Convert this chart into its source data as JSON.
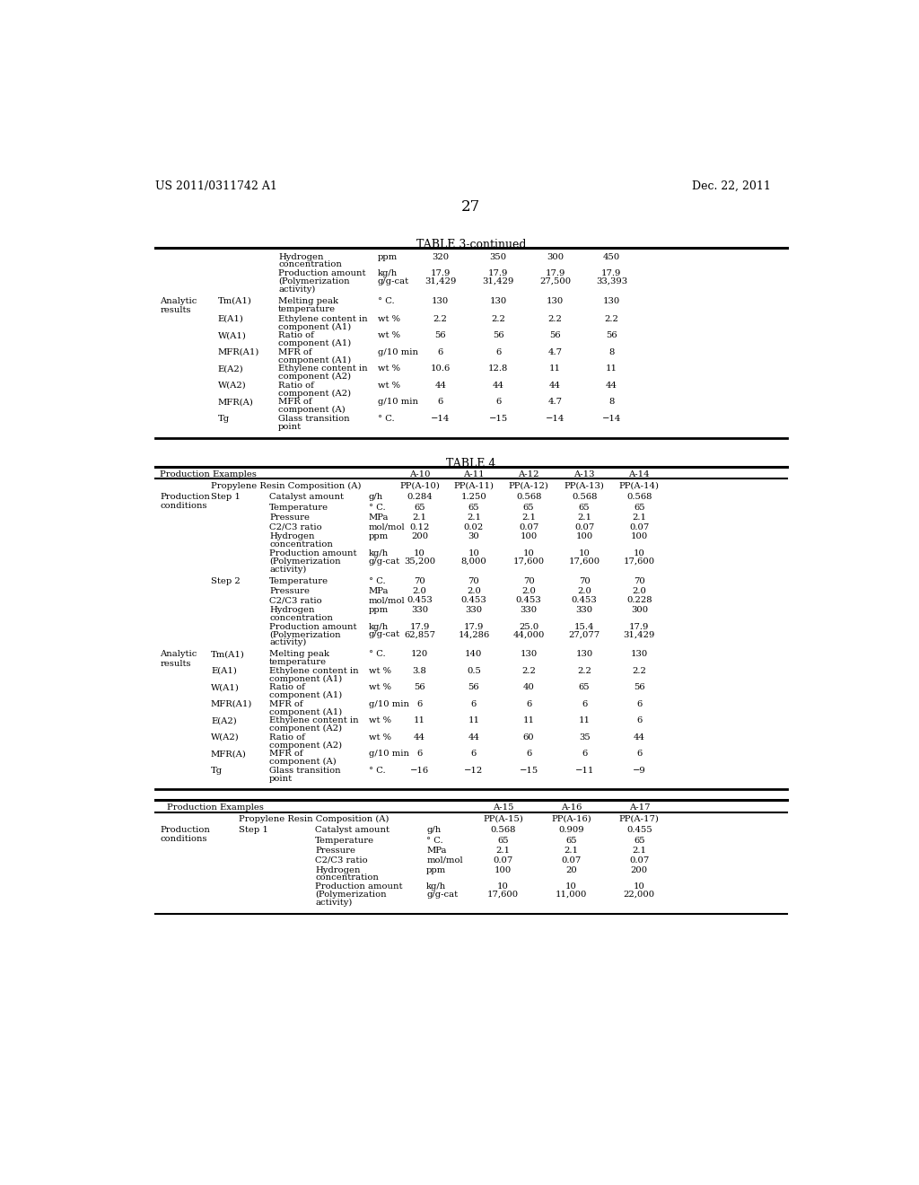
{
  "page_header_left": "US 2011/0311742 A1",
  "page_header_right": "Dec. 22, 2011",
  "page_number": "27",
  "bg_color": "#ffffff",
  "table3_title": "TABLE 3-continued",
  "table3_rows": [
    [
      "",
      "",
      "Hydrogen\nconcentration",
      "ppm",
      "320",
      "350",
      "300",
      "450"
    ],
    [
      "",
      "",
      "Production amount\n(Polymerization\nactivity)",
      "kg/h\ng/g-cat",
      "17.9\n31,429",
      "17.9\n31,429",
      "17.9\n27,500",
      "17.9\n33,393"
    ],
    [
      "Analytic\nresults",
      "Tm(A1)",
      "Melting peak\ntemperature",
      "° C.",
      "130",
      "130",
      "130",
      "130"
    ],
    [
      "",
      "E(A1)",
      "Ethylene content in\ncomponent (A1)",
      "wt %",
      "2.2",
      "2.2",
      "2.2",
      "2.2"
    ],
    [
      "",
      "W(A1)",
      "Ratio of\ncomponent (A1)",
      "wt %",
      "56",
      "56",
      "56",
      "56"
    ],
    [
      "",
      "MFR(A1)",
      "MFR of\ncomponent (A1)",
      "g/10 min",
      "6",
      "6",
      "4.7",
      "8"
    ],
    [
      "",
      "E(A2)",
      "Ethylene content in\ncomponent (A2)",
      "wt %",
      "10.6",
      "12.8",
      "11",
      "11"
    ],
    [
      "",
      "W(A2)",
      "Ratio of\ncomponent (A2)",
      "wt %",
      "44",
      "44",
      "44",
      "44"
    ],
    [
      "",
      "MFR(A)",
      "MFR of\ncomponent (A)",
      "g/10 min",
      "6",
      "6",
      "4.7",
      "8"
    ],
    [
      "",
      "Tg",
      "Glass transition\npoint",
      "° C.",
      "−14",
      "−15",
      "−14",
      "−14"
    ]
  ],
  "table4_title": "TABLE 4",
  "table4_rows": [
    [
      "",
      "Propylene Resin Composition (A)",
      "",
      "",
      "PP(A-10)",
      "PP(A-11)",
      "PP(A-12)",
      "PP(A-13)",
      "PP(A-14)"
    ],
    [
      "Production\nconditions",
      "Step 1",
      "Catalyst amount",
      "g/h",
      "0.284",
      "1.250",
      "0.568",
      "0.568",
      "0.568"
    ],
    [
      "",
      "",
      "Temperature",
      "° C.",
      "65",
      "65",
      "65",
      "65",
      "65"
    ],
    [
      "",
      "",
      "Pressure",
      "MPa",
      "2.1",
      "2.1",
      "2.1",
      "2.1",
      "2.1"
    ],
    [
      "",
      "",
      "C2/C3 ratio",
      "mol/mol",
      "0.12",
      "0.02",
      "0.07",
      "0.07",
      "0.07"
    ],
    [
      "",
      "",
      "Hydrogen\nconcentration",
      "ppm",
      "200",
      "30",
      "100",
      "100",
      "100"
    ],
    [
      "",
      "",
      "Production amount\n(Polymerization\nactivity)",
      "kg/h\ng/g-cat",
      "10\n35,200",
      "10\n8,000",
      "10\n17,600",
      "10\n17,600",
      "10\n17,600"
    ],
    [
      "",
      "Step 2",
      "Temperature",
      "° C.",
      "70",
      "70",
      "70",
      "70",
      "70"
    ],
    [
      "",
      "",
      "Pressure",
      "MPa",
      "2.0",
      "2.0",
      "2.0",
      "2.0",
      "2.0"
    ],
    [
      "",
      "",
      "C2/C3 ratio",
      "mol/mol",
      "0.453",
      "0.453",
      "0.453",
      "0.453",
      "0.228"
    ],
    [
      "",
      "",
      "Hydrogen\nconcentration",
      "ppm",
      "330",
      "330",
      "330",
      "330",
      "300"
    ],
    [
      "",
      "",
      "Production amount\n(Polymerization\nactivity)",
      "kg/h\ng/g-cat",
      "17.9\n62,857",
      "17.9\n14,286",
      "25.0\n44,000",
      "15.4\n27,077",
      "17.9\n31,429"
    ],
    [
      "Analytic\nresults",
      "Tm(A1)",
      "Melting peak\ntemperature",
      "° C.",
      "120",
      "140",
      "130",
      "130",
      "130"
    ],
    [
      "",
      "E(A1)",
      "Ethylene content in\ncomponent (A1)",
      "wt %",
      "3.8",
      "0.5",
      "2.2",
      "2.2",
      "2.2"
    ],
    [
      "",
      "W(A1)",
      "Ratio of\ncomponent (A1)",
      "wt %",
      "56",
      "56",
      "40",
      "65",
      "56"
    ],
    [
      "",
      "MFR(A1)",
      "MFR of\ncomponent (A1)",
      "g/10 min",
      "6",
      "6",
      "6",
      "6",
      "6"
    ],
    [
      "",
      "E(A2)",
      "Ethylene content in\ncomponent (A2)",
      "wt %",
      "11",
      "11",
      "11",
      "11",
      "6"
    ],
    [
      "",
      "W(A2)",
      "Ratio of\ncomponent (A2)",
      "wt %",
      "44",
      "44",
      "60",
      "35",
      "44"
    ],
    [
      "",
      "MFR(A)",
      "MFR of\ncomponent (A)",
      "g/10 min",
      "6",
      "6",
      "6",
      "6",
      "6"
    ],
    [
      "",
      "Tg",
      "Glass transition\npoint",
      "° C.",
      "−16",
      "−12",
      "−15",
      "−11",
      "−9"
    ]
  ],
  "table4b_rows": [
    [
      "",
      "Propylene Resin Composition (A)",
      "",
      "",
      "PP(A-15)",
      "PP(A-16)",
      "PP(A-17)"
    ],
    [
      "Production\nconditions",
      "Step 1",
      "Catalyst amount",
      "g/h",
      "0.568",
      "0.909",
      "0.455"
    ],
    [
      "",
      "",
      "Temperature",
      "° C.",
      "65",
      "65",
      "65"
    ],
    [
      "",
      "",
      "Pressure",
      "MPa",
      "2.1",
      "2.1",
      "2.1"
    ],
    [
      "",
      "",
      "C2/C3 ratio",
      "mol/mol",
      "0.07",
      "0.07",
      "0.07"
    ],
    [
      "",
      "",
      "Hydrogen\nconcentration",
      "ppm",
      "100",
      "20",
      "200"
    ],
    [
      "",
      "",
      "Production amount\n(Polymerization\nactivity)",
      "kg/h\ng/g-cat",
      "10\n17,600",
      "10\n11,000",
      "10\n22,000"
    ]
  ]
}
